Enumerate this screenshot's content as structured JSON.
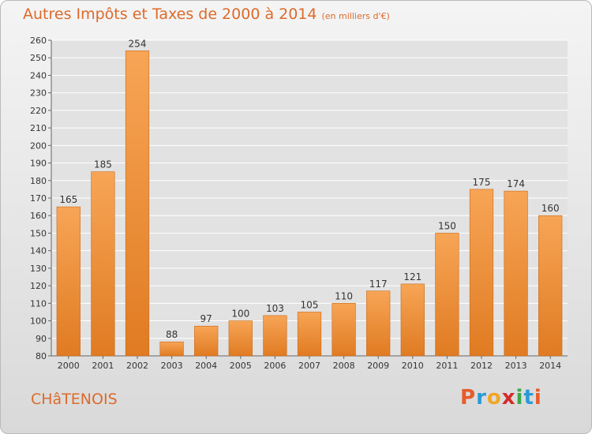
{
  "header": {
    "title": "Autres Impôts et Taxes de 2000 à 2014",
    "unit": "(en milliers d'€)"
  },
  "footer": {
    "commune": "CHâTENOIS",
    "brand": "Proxiti",
    "brand_colors": [
      "#e85c2a",
      "#2a9bd6",
      "#f2a623",
      "#d42a2a",
      "#3aa84a",
      "#2a9bd6",
      "#e85c2a"
    ]
  },
  "colors": {
    "bar_top": "#f7a556",
    "bar_bottom": "#e07b22",
    "grid": "#ffffff",
    "text": "#333333"
  },
  "chart_data": {
    "type": "bar",
    "categories": [
      "2000",
      "2001",
      "2002",
      "2003",
      "2004",
      "2005",
      "2006",
      "2007",
      "2008",
      "2009",
      "2010",
      "2011",
      "2012",
      "2013",
      "2014"
    ],
    "values": [
      165,
      185,
      254,
      88,
      97,
      100,
      103,
      105,
      110,
      117,
      121,
      150,
      175,
      174,
      160
    ],
    "ylim": [
      80,
      260
    ],
    "yticks": [
      80,
      90,
      100,
      110,
      120,
      130,
      140,
      150,
      160,
      170,
      180,
      190,
      200,
      210,
      220,
      230,
      240,
      250,
      260
    ],
    "grid": true
  }
}
